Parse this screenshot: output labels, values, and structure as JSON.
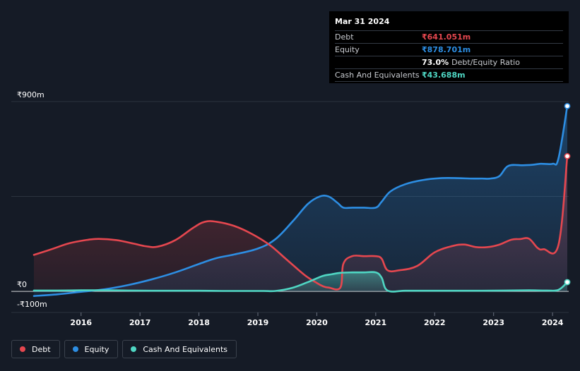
{
  "chart_data": {
    "type": "area",
    "y_axis": {
      "ylim": [
        -100,
        900
      ],
      "tick_labels": [
        "₹900m",
        "₹0",
        "-₹100m"
      ],
      "tick_values": [
        900,
        0,
        -100
      ]
    },
    "x_axis": {
      "xlim": [
        2015.2,
        2024.25
      ],
      "tick_labels": [
        "2016",
        "2017",
        "2018",
        "2019",
        "2020",
        "2021",
        "2022",
        "2023",
        "2024"
      ],
      "tick_values": [
        2016,
        2017,
        2018,
        2019,
        2020,
        2021,
        2022,
        2023,
        2024
      ]
    },
    "grid": "horizontal",
    "legend_position": "bottom-left",
    "series": [
      {
        "name": "Debt",
        "color": "#e5474f",
        "x": [
          2015.2,
          2015.5,
          2015.8,
          2016.1,
          2016.3,
          2016.6,
          2016.9,
          2017.1,
          2017.3,
          2017.6,
          2017.9,
          2018.1,
          2018.3,
          2018.6,
          2018.9,
          2019.2,
          2019.5,
          2019.8,
          2020.0,
          2020.1,
          2020.2,
          2020.4,
          2020.45,
          2020.6,
          2020.8,
          2021.0,
          2021.1,
          2021.2,
          2021.4,
          2021.7,
          2022.0,
          2022.3,
          2022.5,
          2022.7,
          2022.9,
          2023.1,
          2023.3,
          2023.45,
          2023.6,
          2023.75,
          2023.85,
          2024.1,
          2024.25
        ],
        "values": [
          173,
          200,
          228,
          244,
          249,
          243,
          226,
          214,
          212,
          243,
          301,
          330,
          330,
          310,
          272,
          220,
          148,
          76,
          40,
          25,
          18,
          18,
          130,
          167,
          167,
          167,
          155,
          100,
          100,
          120,
          185,
          215,
          222,
          210,
          210,
          222,
          245,
          248,
          250,
          205,
          200,
          220,
          641
        ]
      },
      {
        "name": "Equity",
        "color": "#2d8ee3",
        "x": [
          2015.2,
          2015.6,
          2016.0,
          2016.4,
          2016.8,
          2017.2,
          2017.6,
          2018.0,
          2018.3,
          2018.6,
          2019.0,
          2019.3,
          2019.6,
          2019.85,
          2020.05,
          2020.2,
          2020.35,
          2020.45,
          2020.6,
          2020.8,
          2021.0,
          2021.1,
          2021.25,
          2021.5,
          2021.8,
          2022.1,
          2022.4,
          2022.6,
          2022.8,
          2022.95,
          2023.1,
          2023.25,
          2023.5,
          2023.65,
          2023.8,
          2024.0,
          2024.1,
          2024.25
        ],
        "values": [
          -22,
          -14,
          -2,
          10,
          30,
          57,
          90,
          130,
          158,
          175,
          203,
          248,
          335,
          415,
          450,
          450,
          420,
          397,
          397,
          397,
          397,
          425,
          474,
          508,
          528,
          537,
          537,
          535,
          535,
          535,
          547,
          595,
          598,
          600,
          605,
          605,
          630,
          878.701
        ]
      },
      {
        "name": "Cash And Equivalents",
        "color": "#4fd6c3",
        "x": [
          2015.2,
          2015.6,
          2016.0,
          2016.4,
          2016.8,
          2017.2,
          2017.6,
          2018.0,
          2018.4,
          2018.8,
          2019.1,
          2019.3,
          2019.6,
          2019.9,
          2020.1,
          2020.25,
          2020.4,
          2020.6,
          2020.8,
          2021.0,
          2021.1,
          2021.2,
          2021.5,
          2021.8,
          2022.1,
          2022.4,
          2022.8,
          2023.2,
          2023.6,
          2023.9,
          2024.1,
          2024.25
        ],
        "values": [
          4,
          4,
          5,
          5,
          4,
          3,
          3,
          3,
          2,
          2,
          2,
          2,
          18,
          50,
          73,
          81,
          88,
          90,
          90,
          90,
          65,
          4,
          3,
          3,
          3,
          3,
          3,
          4,
          5,
          4,
          7,
          43.688
        ]
      }
    ],
    "end_markers": true
  },
  "tooltip": {
    "date": "Mar 31 2024",
    "rows": [
      {
        "label": "Debt",
        "value": "₹641.051m",
        "color": "#e5474f",
        "extra": ""
      },
      {
        "label": "Equity",
        "value": "₹878.701m",
        "color": "#2d8ee3",
        "extra": ""
      },
      {
        "label": "",
        "value": "73.0%",
        "color": "#ffffff",
        "extra": "Debt/Equity Ratio"
      },
      {
        "label": "Cash And Equivalents",
        "value": "₹43.688m",
        "color": "#4fd6c3",
        "extra": ""
      }
    ]
  },
  "legend": [
    {
      "label": "Debt",
      "color": "#e5474f"
    },
    {
      "label": "Equity",
      "color": "#2d8ee3"
    },
    {
      "label": "Cash And Equivalents",
      "color": "#4fd6c3"
    }
  ]
}
